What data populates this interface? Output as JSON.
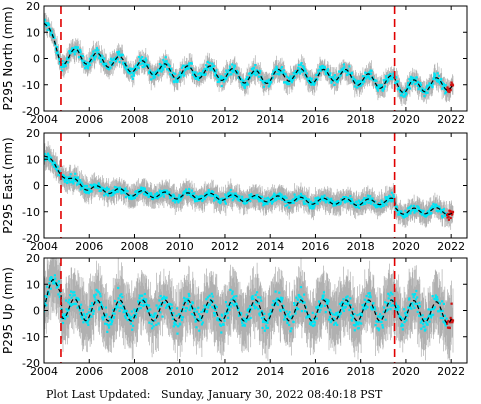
{
  "chart_data": [
    {
      "type": "scatter",
      "ylabel": "P295 North (mm)",
      "xlim": [
        2004,
        2022.7
      ],
      "ylim": [
        -20,
        20
      ],
      "yticks": [
        -20,
        -10,
        0,
        10,
        20
      ],
      "xticks": [
        2004,
        2006,
        2008,
        2010,
        2012,
        2014,
        2016,
        2018,
        2020,
        2022
      ],
      "events": [
        2004.75,
        2019.5
      ],
      "model_points": [
        [
          2004.0,
          15
        ],
        [
          2004.3,
          8
        ],
        [
          2004.6,
          2
        ],
        [
          2004.75,
          0
        ],
        [
          2005.1,
          0.5
        ],
        [
          2005.5,
          1.5
        ],
        [
          2006,
          0
        ],
        [
          2007,
          -1
        ],
        [
          2008,
          -3
        ],
        [
          2009,
          -4
        ],
        [
          2010,
          -5.5
        ],
        [
          2011,
          -5
        ],
        [
          2012,
          -6
        ],
        [
          2013,
          -7
        ],
        [
          2014,
          -7
        ],
        [
          2015,
          -6
        ],
        [
          2016,
          -7
        ],
        [
          2017,
          -6
        ],
        [
          2018,
          -8
        ],
        [
          2019,
          -9
        ],
        [
          2019.5,
          -9
        ],
        [
          2020,
          -11
        ],
        [
          2021,
          -10
        ],
        [
          2022,
          -9.5
        ]
      ],
      "seasonal_amp": 2.5,
      "spread": 2.5,
      "error": 3
    },
    {
      "type": "scatter",
      "ylabel": "P295 East (mm)",
      "xlim": [
        2004,
        2022.7
      ],
      "ylim": [
        -20,
        20
      ],
      "yticks": [
        -20,
        -10,
        0,
        10,
        20
      ],
      "xticks": [
        2004,
        2006,
        2008,
        2010,
        2012,
        2014,
        2016,
        2018,
        2020,
        2022
      ],
      "events": [
        2004.75,
        2019.5
      ],
      "model_points": [
        [
          2004.0,
          12
        ],
        [
          2004.3,
          9
        ],
        [
          2004.6,
          6
        ],
        [
          2004.75,
          5
        ],
        [
          2005.2,
          2
        ],
        [
          2006,
          -1
        ],
        [
          2007,
          -2
        ],
        [
          2008,
          -3
        ],
        [
          2009,
          -3.5
        ],
        [
          2010,
          -4
        ],
        [
          2011,
          -4
        ],
        [
          2012,
          -4.5
        ],
        [
          2013,
          -5
        ],
        [
          2014,
          -5
        ],
        [
          2015,
          -5.5
        ],
        [
          2016,
          -6
        ],
        [
          2017,
          -6
        ],
        [
          2018,
          -6.5
        ],
        [
          2019,
          -6
        ],
        [
          2019.5,
          -6
        ],
        [
          2019.55,
          -9
        ],
        [
          2020,
          -10
        ],
        [
          2021,
          -9.5
        ],
        [
          2022,
          -10
        ]
      ],
      "seasonal_amp": 1.2,
      "spread": 2,
      "error": 3.5
    },
    {
      "type": "scatter",
      "ylabel": "P295 Up (mm)",
      "xlim": [
        2004,
        2022.7
      ],
      "ylim": [
        -20,
        20
      ],
      "yticks": [
        -20,
        -10,
        0,
        10,
        20
      ],
      "xticks": [
        2004,
        2006,
        2008,
        2010,
        2012,
        2014,
        2016,
        2018,
        2020,
        2022
      ],
      "events": [
        2004.75,
        2019.5
      ],
      "model_points": [
        [
          2004.0,
          3
        ],
        [
          2004.4,
          8
        ],
        [
          2004.75,
          10
        ],
        [
          2004.8,
          1
        ],
        [
          2006,
          0
        ],
        [
          2008,
          0
        ],
        [
          2010,
          0
        ],
        [
          2012,
          0
        ],
        [
          2014,
          0
        ],
        [
          2016,
          0
        ],
        [
          2018,
          0
        ],
        [
          2020,
          0
        ],
        [
          2022,
          -1
        ]
      ],
      "seasonal_amp": 4,
      "spread": 5,
      "error": 9
    }
  ],
  "footer": {
    "label": "Plot Last Updated:",
    "value": "Sunday, January 30, 2022 08:40:18 PST"
  },
  "colors": {
    "data": "#00e5f5",
    "error": "#b0b0b0",
    "recent": "#d01010",
    "model": "#000000",
    "event": "#e00000",
    "frame": "#000000"
  }
}
